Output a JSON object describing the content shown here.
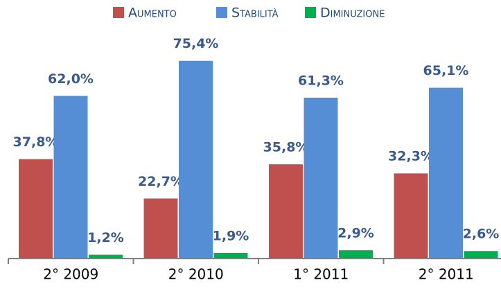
{
  "chart_data": {
    "type": "bar",
    "categories": [
      "2° 2009",
      "2° 2010",
      "1° 2011",
      "2° 2011"
    ],
    "series": [
      {
        "name": "Aumento",
        "color": "#c0504d",
        "values": [
          37.8,
          22.7,
          35.8,
          32.3
        ],
        "value_labels": [
          "37,8%",
          "22,7%",
          "35,8%",
          "32,3%"
        ]
      },
      {
        "name": "Stabilità",
        "color": "#558ed5",
        "values": [
          62.0,
          75.4,
          61.3,
          65.1
        ],
        "value_labels": [
          "62,0%",
          "75,4%",
          "61,3%",
          "65,1%"
        ]
      },
      {
        "name": "Diminuzione",
        "color": "#00b050",
        "values": [
          1.2,
          1.9,
          2.9,
          2.6
        ],
        "value_labels": [
          "1,2%",
          "1,9%",
          "2,9%",
          "2,6%"
        ]
      }
    ]
  }
}
